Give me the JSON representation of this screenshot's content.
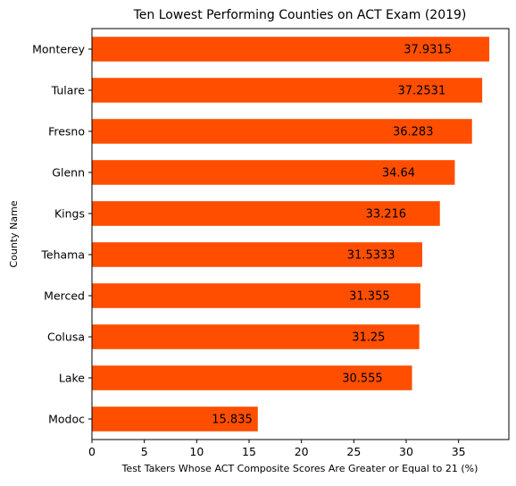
{
  "chart_data": {
    "type": "bar",
    "orientation": "horizontal",
    "title": "Ten Lowest Performing Counties on ACT Exam (2019)",
    "xlabel": "Test Takers Whose ACT Composite Scores Are Greater or Equal to 21 (%)",
    "ylabel": "County Name",
    "categories": [
      "Monterey",
      "Tulare",
      "Fresno",
      "Glenn",
      "Kings",
      "Tehama",
      "Merced",
      "Colusa",
      "Lake",
      "Modoc"
    ],
    "values": [
      37.9315,
      37.2531,
      36.283,
      34.64,
      33.216,
      31.5333,
      31.355,
      31.25,
      30.555,
      15.835
    ],
    "value_labels": [
      "37.9315",
      "37.2531",
      "36.283",
      "34.64",
      "33.216",
      "31.5333",
      "31.355",
      "31.25",
      "30.555",
      "15.835"
    ],
    "xlim": [
      0,
      39.8
    ],
    "xticks": [
      0,
      5,
      10,
      15,
      20,
      25,
      30,
      35
    ],
    "bar_color": "#ff4e00",
    "grid": false
  }
}
